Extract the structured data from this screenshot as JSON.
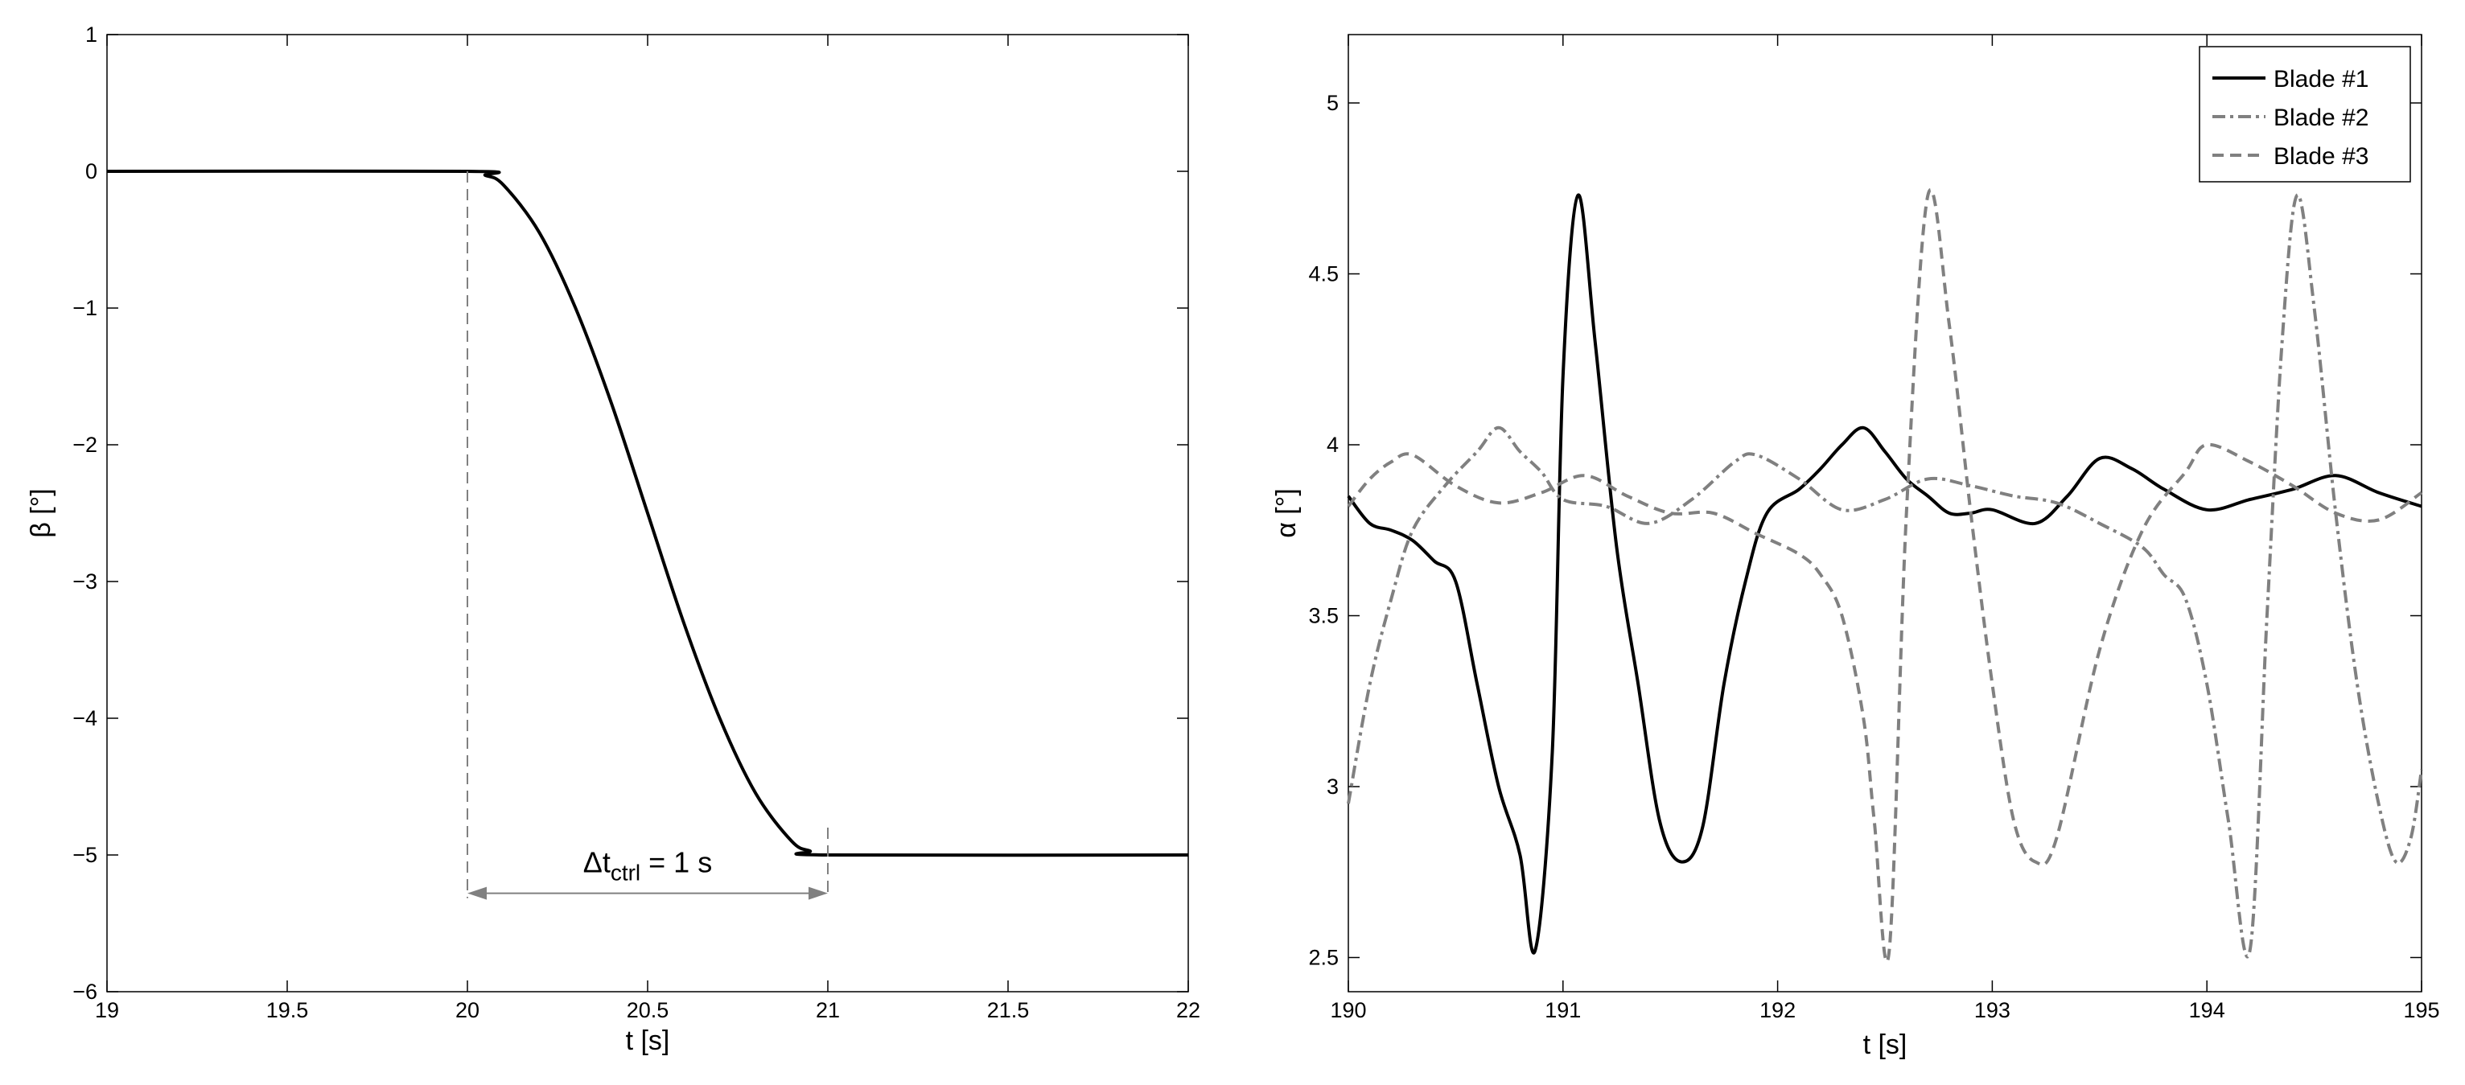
{
  "chart_data": [
    {
      "type": "line",
      "xlabel": "t [s]",
      "ylabel": "β [°]",
      "xlim": [
        19,
        22
      ],
      "ylim": [
        -6,
        1
      ],
      "xticks": [
        "19",
        "19.5",
        "20",
        "20.5",
        "21",
        "21.5",
        "22"
      ],
      "yticks": [
        "1",
        "0",
        "−1",
        "−2",
        "−3",
        "−4",
        "−5",
        "−6"
      ],
      "grid": false,
      "series": [
        {
          "color": "#000000",
          "x": [
            19,
            20,
            20.05,
            20.1,
            20.2,
            20.3,
            20.4,
            20.5,
            20.6,
            20.7,
            20.8,
            20.9,
            20.95,
            21,
            22
          ],
          "y": [
            0,
            0,
            -0.03,
            -0.1,
            -0.45,
            -1.0,
            -1.7,
            -2.5,
            -3.3,
            -4.0,
            -4.55,
            -4.9,
            -4.97,
            -5,
            -5
          ]
        }
      ],
      "annotation": {
        "text_main": "Δt",
        "text_sub": "ctrl",
        "text_rest": " = 1 s",
        "x_start": 20,
        "x_end": 21,
        "y": -5.28,
        "color": "#808080"
      }
    },
    {
      "type": "line",
      "xlabel": "t [s]",
      "ylabel": "α [°]",
      "xlim": [
        190,
        195
      ],
      "ylim": [
        2.4,
        5.2
      ],
      "xticks": [
        "190",
        "191",
        "192",
        "193",
        "194",
        "195"
      ],
      "yticks": [
        "5",
        "4.5",
        "4",
        "3.5",
        "3",
        "2.5"
      ],
      "grid": false,
      "legend_position": "top-right",
      "series": [
        {
          "name": "Blade #1",
          "style": "solid",
          "color": "#000000",
          "x": [
            190,
            190.1,
            190.2,
            190.3,
            190.4,
            190.5,
            190.6,
            190.7,
            190.8,
            190.87,
            190.95,
            191.0,
            191.07,
            191.15,
            191.25,
            191.35,
            191.45,
            191.55,
            191.65,
            191.75,
            191.85,
            191.95,
            192.1,
            192.2,
            192.3,
            192.4,
            192.5,
            192.6,
            192.7,
            192.8,
            192.9,
            193.0,
            193.2,
            193.35,
            193.5,
            193.65,
            193.8,
            194.0,
            194.2,
            194.4,
            194.6,
            194.8,
            195
          ],
          "y": [
            3.85,
            3.77,
            3.75,
            3.72,
            3.66,
            3.6,
            3.3,
            3.0,
            2.8,
            2.52,
            3.1,
            4.2,
            4.73,
            4.3,
            3.7,
            3.3,
            2.9,
            2.78,
            2.88,
            3.3,
            3.6,
            3.8,
            3.87,
            3.93,
            4.0,
            4.05,
            3.98,
            3.9,
            3.85,
            3.8,
            3.8,
            3.81,
            3.77,
            3.85,
            3.96,
            3.93,
            3.87,
            3.81,
            3.84,
            3.87,
            3.91,
            3.86,
            3.82
          ]
        },
        {
          "name": "Blade #2",
          "style": "dashdot",
          "color": "#808080",
          "x": [
            190,
            190.1,
            190.2,
            190.3,
            190.45,
            190.6,
            190.7,
            190.8,
            190.9,
            191.0,
            191.2,
            191.4,
            191.6,
            191.8,
            191.9,
            192.1,
            192.3,
            192.5,
            192.7,
            192.9,
            193.1,
            193.3,
            193.5,
            193.7,
            193.8,
            193.9,
            194.0,
            194.1,
            194.2,
            194.28,
            194.35,
            194.42,
            194.5,
            194.6,
            194.7,
            194.8,
            194.88,
            194.95,
            195
          ],
          "y": [
            2.95,
            3.3,
            3.55,
            3.75,
            3.88,
            3.98,
            4.05,
            3.98,
            3.92,
            3.84,
            3.82,
            3.77,
            3.84,
            3.95,
            3.97,
            3.9,
            3.81,
            3.84,
            3.9,
            3.88,
            3.85,
            3.83,
            3.77,
            3.7,
            3.62,
            3.55,
            3.3,
            2.9,
            2.52,
            3.5,
            4.3,
            4.73,
            4.4,
            3.8,
            3.3,
            2.95,
            2.78,
            2.85,
            3.05
          ]
        },
        {
          "name": "Blade #3",
          "style": "dashed",
          "color": "#808080",
          "x": [
            190,
            190.1,
            190.2,
            190.3,
            190.5,
            190.7,
            190.9,
            191.1,
            191.3,
            191.5,
            191.7,
            191.9,
            192.1,
            192.2,
            192.3,
            192.4,
            192.45,
            192.52,
            192.6,
            192.7,
            192.8,
            192.9,
            193.0,
            193.1,
            193.2,
            193.3,
            193.5,
            193.7,
            193.9,
            194.0,
            194.2,
            194.4,
            194.6,
            194.8,
            195
          ],
          "y": [
            3.82,
            3.9,
            3.95,
            3.97,
            3.88,
            3.83,
            3.86,
            3.91,
            3.85,
            3.8,
            3.8,
            3.74,
            3.68,
            3.62,
            3.5,
            3.2,
            2.9,
            2.52,
            3.8,
            4.73,
            4.35,
            3.8,
            3.3,
            2.9,
            2.78,
            2.85,
            3.4,
            3.75,
            3.92,
            4.0,
            3.95,
            3.88,
            3.8,
            3.78,
            3.86
          ]
        }
      ]
    }
  ]
}
